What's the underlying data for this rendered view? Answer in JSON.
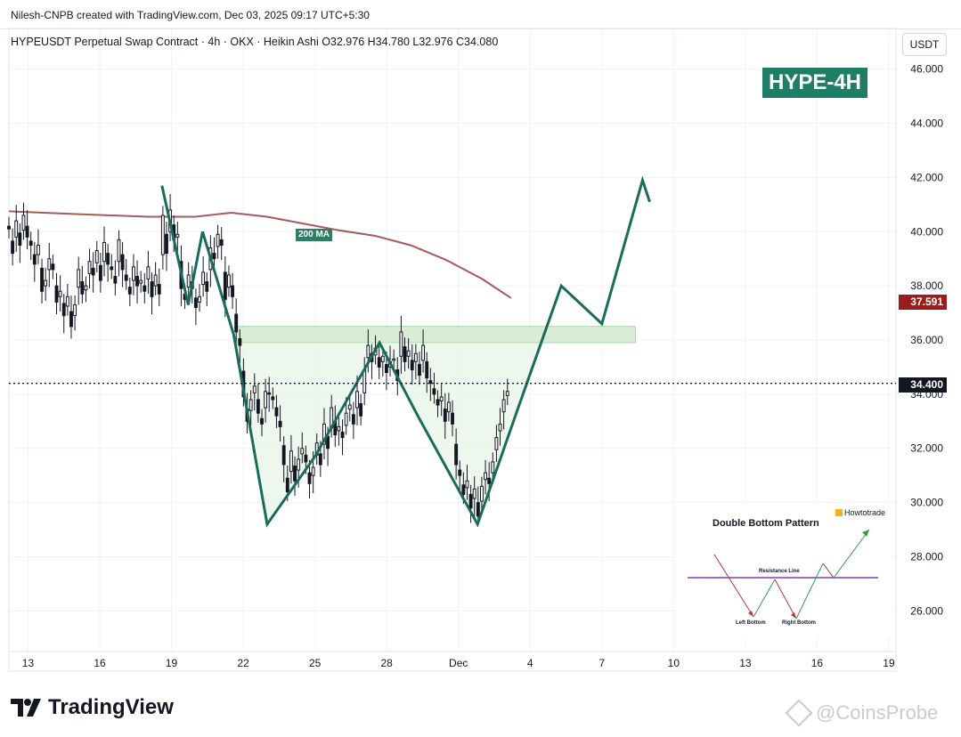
{
  "header": {
    "creator": "Nilesh-CNPB created with TradingView.com, Dec 03, 2025 09:17 UTC+5:30"
  },
  "symbol_line": "HYPEUSDT Perpetual Swap Contract · 4h · OKX · Heikin Ashi   O32.976  H34.780  L32.976  C34.080",
  "currency_button": "USDT",
  "badge": "HYPE-4H",
  "ma_label": "200 MA",
  "price_tags": {
    "ma_value": "37.591",
    "last_value": "34.400"
  },
  "inset": {
    "title": "Double Bottom Pattern",
    "brand": "Howtotrade",
    "resistance_label": "Resistance Line",
    "left_bottom_label": "Left Bottom",
    "right_bottom_label": "Right Bottom"
  },
  "footer": {
    "logo_text": "TradingView",
    "logo_icon": "tradingview-logo-icon",
    "watermark": "@CoinsProbe",
    "watermark_icon": "coinsprobe-diamond-icon"
  },
  "colors": {
    "pattern_line": "#1b6b5c",
    "ma_line": "#a65a5a",
    "resistance_zone": "#cfe8cc",
    "candle": "#131722",
    "badge_bg": "#1e7f66",
    "ma_tag_bg": "#9a1c1c"
  },
  "chart_data": {
    "type": "line",
    "title": "",
    "xlabel": "",
    "ylabel": "",
    "ylim": [
      24.5,
      47.5
    ],
    "y_ticks": [
      "46.000",
      "44.000",
      "42.000",
      "40.000",
      "38.000",
      "36.000",
      "34.000",
      "32.000",
      "30.000",
      "28.000",
      "26.000"
    ],
    "y_tick_values": [
      46,
      44,
      42,
      40,
      38,
      36,
      34,
      32,
      30,
      28,
      26
    ],
    "x_ticks": [
      "13",
      "16",
      "19",
      "22",
      "25",
      "28",
      "Dec",
      "4",
      "7",
      "10",
      "13",
      "16",
      "19"
    ],
    "x_tick_days": [
      13,
      16,
      19,
      22,
      25,
      28,
      31,
      34,
      37,
      40,
      43,
      46,
      49
    ],
    "x_range_days": [
      12.2,
      49.3
    ],
    "last_price": 34.4,
    "series": [
      {
        "name": "200 MA",
        "points": [
          [
            12.2,
            40.75
          ],
          [
            15,
            40.65
          ],
          [
            18,
            40.55
          ],
          [
            20,
            40.55
          ],
          [
            21.5,
            40.7
          ],
          [
            23,
            40.55
          ],
          [
            24.5,
            40.3
          ],
          [
            26,
            40.05
          ],
          [
            27.5,
            39.85
          ],
          [
            29,
            39.5
          ],
          [
            30.5,
            38.95
          ],
          [
            32,
            38.25
          ],
          [
            33.2,
            37.55
          ]
        ]
      },
      {
        "name": "",
        "points": [
          [
            18.6,
            41.7
          ],
          [
            19.7,
            37.3
          ],
          [
            20.3,
            40.0
          ],
          [
            21.6,
            36.2
          ],
          [
            23.0,
            29.2
          ],
          [
            25.0,
            31.7
          ],
          [
            27.7,
            35.9
          ],
          [
            29.3,
            33.2
          ],
          [
            31.8,
            29.2
          ],
          [
            33.5,
            33.5
          ],
          [
            35.3,
            38.0
          ],
          [
            37.0,
            36.6
          ],
          [
            38.7,
            41.9
          ],
          [
            39.0,
            41.1
          ]
        ]
      }
    ],
    "resistance_zone": [
      35.9,
      36.5
    ],
    "resistance_zone_days": [
      21.7,
      38.4
    ],
    "candles_close": [
      40.1,
      39.2,
      40.4,
      39.5,
      40.6,
      39.8,
      39.5,
      38.8,
      39.5,
      37.8,
      38.2,
      39.0,
      38.6,
      37.4,
      37.8,
      36.9,
      37.6,
      36.5,
      37.3,
      38.6,
      37.7,
      38.0,
      38.9,
      38.4,
      39.3,
      38.2,
      39.6,
      38.8,
      38.6,
      38.1,
      39.7,
      38.6,
      38.2,
      37.7,
      38.7,
      38.0,
      38.2,
      37.8,
      38.7,
      37.6,
      38.4,
      37.7,
      40.6,
      39.2,
      40.8,
      39.7,
      39.9,
      37.9,
      37.5,
      38.4,
      37.9,
      37.2,
      37.6,
      38.5,
      37.8,
      39.4,
      39.0,
      39.9,
      39.5,
      37.5,
      38.4,
      37.6,
      36.3,
      35.8,
      33.9,
      33.0,
      33.8,
      34.3,
      33.3,
      32.9,
      34.1,
      34.0,
      33.8,
      33.2,
      32.8,
      31.4,
      30.4,
      31.9,
      30.8,
      31.6,
      32.0,
      31.5,
      30.7,
      31.3,
      32.2,
      31.4,
      32.9,
      32.0,
      33.5,
      32.5,
      32.8,
      32.4,
      33.3,
      33.6,
      32.9,
      34.1,
      33.2,
      34.9,
      35.8,
      35.2,
      35.7,
      35.0,
      35.4,
      34.8,
      35.2,
      35.3,
      34.5,
      36.3,
      35.2,
      35.6,
      34.9,
      35.5,
      34.7,
      35.8,
      34.6,
      34.4,
      34.0,
      33.6,
      33.9,
      33.0,
      33.7,
      32.9,
      31.4,
      31.0,
      30.3,
      30.8,
      29.8,
      30.5,
      29.5,
      30.6,
      31.1,
      30.7,
      31.5,
      32.4,
      32.9,
      33.8,
      34.1
    ]
  }
}
